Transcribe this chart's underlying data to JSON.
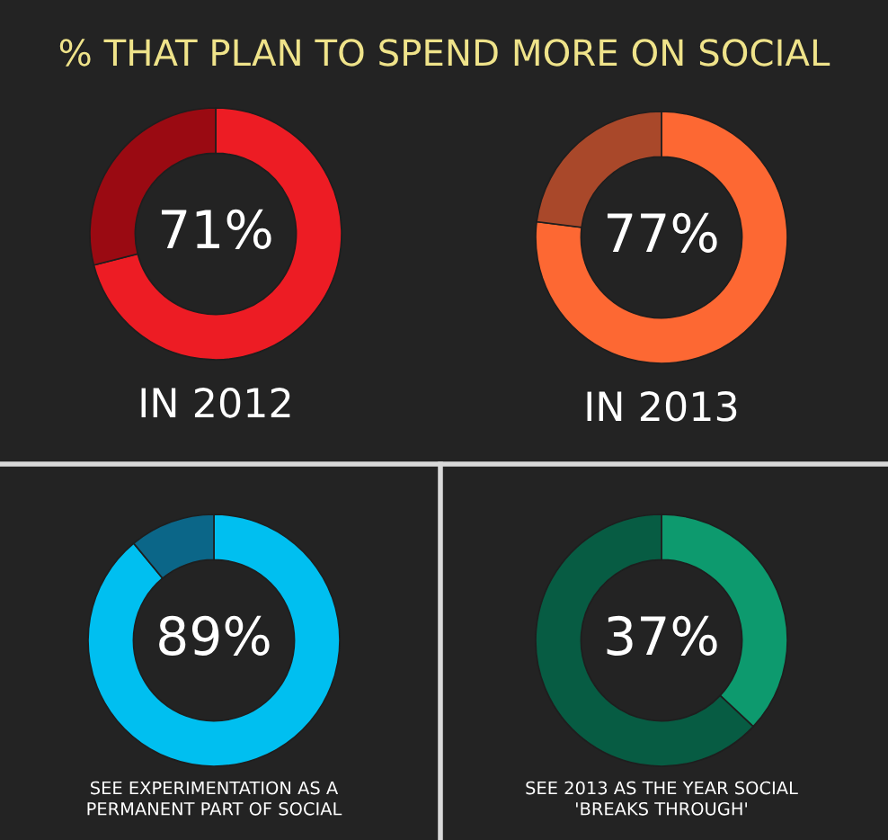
{
  "chart_data": [
    {
      "type": "donut",
      "title": "% THAT PLAN TO SPEND MORE ON SOCIAL",
      "xlabel": "IN 2012",
      "categories": [
        null,
        null
      ],
      "values": [
        71,
        29
      ],
      "colors": [
        "#ed1c24",
        "#9a0a12"
      ],
      "value_labels": [
        "71%",
        null
      ]
    },
    {
      "type": "donut",
      "xlabel": "IN 2013",
      "categories": [
        null,
        null
      ],
      "values": [
        77,
        23
      ],
      "colors": [
        "#fd6833",
        "#a9482a"
      ],
      "value_labels": [
        "77%",
        null
      ]
    },
    {
      "type": "donut",
      "xlabel": "SEE EXPERIMENTATION AS A\nPERMANENT PART OF SOCIAL",
      "categories": [
        null,
        null
      ],
      "values": [
        89,
        11
      ],
      "colors": [
        "#00bff0",
        "#0b6688"
      ],
      "value_labels": [
        "89%",
        null
      ]
    },
    {
      "type": "donut",
      "xlabel": "SEE 2013 AS THE YEAR SOCIAL\n'BREAKS THROUGH'",
      "categories": [
        null,
        null
      ],
      "values": [
        37,
        63
      ],
      "colors": [
        "#0d9a6e",
        "#075c43"
      ],
      "value_labels": [
        "37%",
        null
      ]
    }
  ]
}
